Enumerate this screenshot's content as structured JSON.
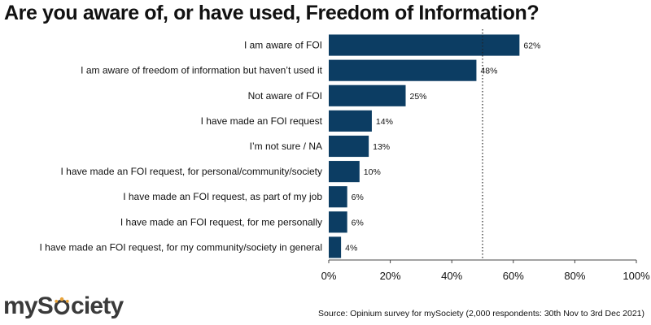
{
  "title": "Are you aware of, or have used, Freedom of Information?",
  "chart_data": {
    "type": "bar",
    "orientation": "horizontal",
    "categories": [
      "I am aware of FOI",
      "I am aware of freedom of information but haven’t used it",
      "Not aware of FOI",
      "I have made an FOI request",
      "I’m not sure / NA",
      "I have made an FOI request, for personal/community/society",
      "I have made an FOI request, as part of my job",
      "I have made an FOI request, for me personally",
      "I have made an FOI request, for my community/society in general"
    ],
    "values": [
      62,
      48,
      25,
      14,
      13,
      10,
      6,
      6,
      4
    ],
    "value_labels": [
      "62%",
      "48%",
      "25%",
      "14%",
      "13%",
      "10%",
      "6%",
      "6%",
      "4%"
    ],
    "xlim": [
      0,
      100
    ],
    "xticks": [
      0,
      20,
      40,
      60,
      80,
      100
    ],
    "xtick_labels": [
      "0%",
      "20%",
      "40%",
      "60%",
      "80%",
      "100%"
    ],
    "reference_line": 50,
    "bar_color": "#0c3d63",
    "grid": false
  },
  "branding": {
    "logo_text_pre": "myS",
    "logo_text_post": "ciety",
    "logo_color": "#3a3a3a"
  },
  "source": "Source: Opinium survey for mySociety (2,000 respondents: 30th Nov to 3rd Dec 2021)"
}
